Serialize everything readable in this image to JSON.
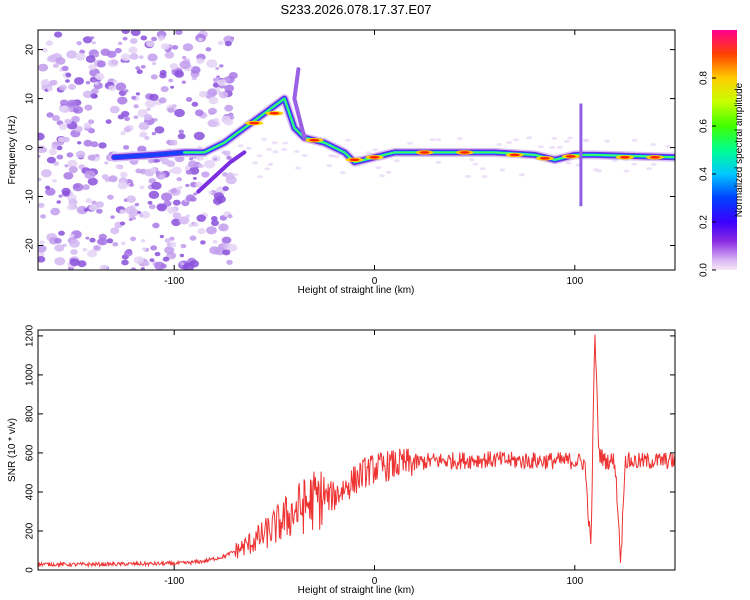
{
  "title": "S233.2026.078.17.37.E07",
  "colors": {
    "snr_line": "#ee3333",
    "axis": "#000000",
    "background": "#ffffff"
  },
  "chart_data": [
    {
      "type": "heatmap",
      "title": "S233.2026.078.17.37.E07",
      "xlabel": "Height of straight line (km)",
      "ylabel": "Frequency (Hz)",
      "xlim": [
        -168,
        150
      ],
      "ylim": [
        -25,
        24
      ],
      "xticks": [
        -100,
        0,
        100
      ],
      "yticks": [
        -20,
        -10,
        0,
        10,
        20
      ],
      "colormap": "rainbow (purple-blue-cyan-green-yellow-red)",
      "colorbar": {
        "label": "Normalized spectral amplitude",
        "range": [
          0,
          1
        ],
        "ticks": [
          0.0,
          0.2,
          0.4,
          0.6,
          0.8
        ]
      },
      "ridge": [
        {
          "x": -130,
          "y": -2
        },
        {
          "x": -110,
          "y": -1.5
        },
        {
          "x": -95,
          "y": -1
        },
        {
          "x": -85,
          "y": -1
        },
        {
          "x": -75,
          "y": 1
        },
        {
          "x": -65,
          "y": 4
        },
        {
          "x": -55,
          "y": 7
        },
        {
          "x": -45,
          "y": 10
        },
        {
          "x": -40,
          "y": 4
        },
        {
          "x": -35,
          "y": 2
        },
        {
          "x": -25,
          "y": 1
        },
        {
          "x": -15,
          "y": -1
        },
        {
          "x": -10,
          "y": -3
        },
        {
          "x": 0,
          "y": -2
        },
        {
          "x": 10,
          "y": -1
        },
        {
          "x": 30,
          "y": -1
        },
        {
          "x": 60,
          "y": -1
        },
        {
          "x": 80,
          "y": -1.5
        },
        {
          "x": 90,
          "y": -2.5
        },
        {
          "x": 100,
          "y": -1.5
        },
        {
          "x": 110,
          "y": -1.5
        },
        {
          "x": 150,
          "y": -2
        }
      ]
    },
    {
      "type": "line",
      "xlabel": "Height of straight line (km)",
      "ylabel": "SNR (10 * v/v)",
      "xlim": [
        -168,
        150
      ],
      "ylim": [
        0,
        1230
      ],
      "xticks": [
        -100,
        0,
        100
      ],
      "yticks": [
        0,
        200,
        400,
        600,
        800,
        1000,
        1200
      ],
      "series": [
        {
          "name": "SNR",
          "x": [
            -168,
            -150,
            -130,
            -110,
            -95,
            -85,
            -75,
            -65,
            -55,
            -50,
            -45,
            -40,
            -35,
            -30,
            -25,
            -20,
            -15,
            -10,
            -5,
            0,
            10,
            20,
            30,
            40,
            50,
            60,
            70,
            80,
            90,
            100,
            105,
            108,
            110,
            112,
            115,
            120,
            123,
            125,
            130,
            140,
            150
          ],
          "values": [
            30,
            28,
            30,
            32,
            35,
            45,
            70,
            120,
            180,
            220,
            260,
            300,
            330,
            360,
            370,
            380,
            420,
            460,
            500,
            520,
            540,
            550,
            560,
            560,
            565,
            565,
            560,
            560,
            560,
            560,
            550,
            100,
            1230,
            600,
            560,
            560,
            40,
            560,
            555,
            560,
            560
          ]
        }
      ]
    }
  ]
}
